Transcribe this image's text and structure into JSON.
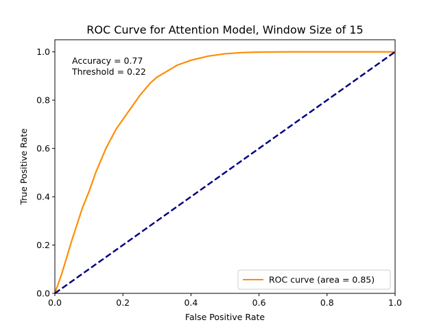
{
  "chart_data": {
    "type": "line",
    "title": "ROC Curve for Attention Model, Window Size of 15",
    "xlabel": "False Positive Rate",
    "ylabel": "True Positive Rate",
    "xlim": [
      0.0,
      1.0
    ],
    "ylim": [
      0.0,
      1.05
    ],
    "xticks": [
      "0.0",
      "0.2",
      "0.4",
      "0.6",
      "0.8",
      "1.0"
    ],
    "yticks": [
      "0.0",
      "0.2",
      "0.4",
      "0.6",
      "0.8",
      "1.0"
    ],
    "grid": false,
    "legend_position": "lower-right",
    "annotations": [
      "Accuracy = 0.77",
      "Threshold = 0.22"
    ],
    "series": [
      {
        "name": "ROC curve (area = 0.85)",
        "color": "#ff8c00",
        "style": "solid",
        "x": [
          0.0,
          0.02,
          0.05,
          0.08,
          0.1,
          0.12,
          0.15,
          0.18,
          0.2,
          0.22,
          0.25,
          0.28,
          0.3,
          0.33,
          0.36,
          0.4,
          0.45,
          0.5,
          0.55,
          0.6,
          0.7,
          0.8,
          0.9,
          1.0
        ],
        "y": [
          0.0,
          0.08,
          0.22,
          0.35,
          0.42,
          0.5,
          0.6,
          0.68,
          0.72,
          0.76,
          0.82,
          0.87,
          0.895,
          0.92,
          0.945,
          0.965,
          0.982,
          0.992,
          0.997,
          0.999,
          1.0,
          1.0,
          1.0,
          1.0
        ]
      },
      {
        "name": "",
        "color": "#000080",
        "style": "dashed",
        "x": [
          0.0,
          1.0
        ],
        "y": [
          0.0,
          1.0
        ]
      }
    ]
  }
}
